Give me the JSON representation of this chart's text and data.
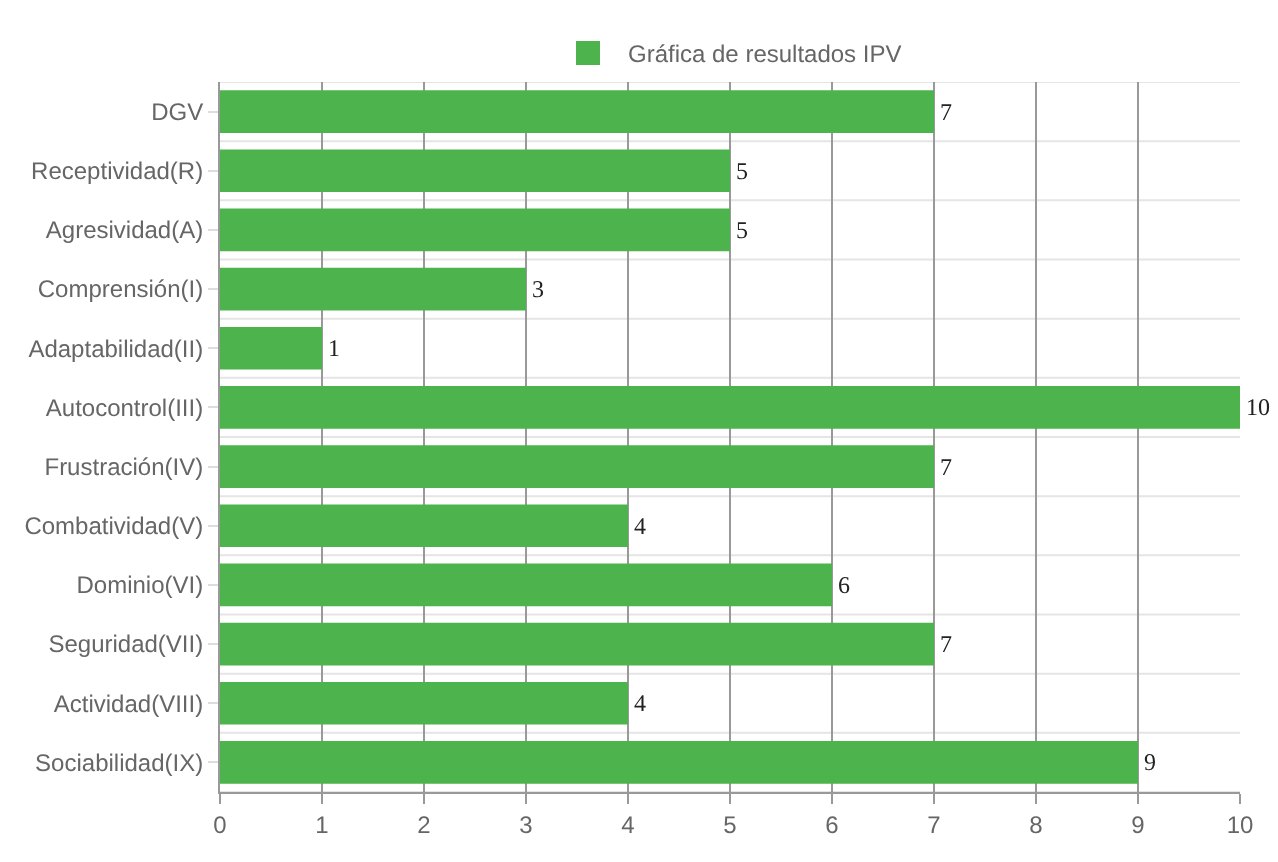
{
  "chart_data": {
    "type": "bar",
    "orientation": "horizontal",
    "categories": [
      "DGV",
      "Receptividad(R)",
      "Agresividad(A)",
      "Comprensión(I)",
      "Adaptabilidad(II)",
      "Autocontrol(III)",
      "Frustración(IV)",
      "Combatividad(V)",
      "Dominio(VI)",
      "Seguridad(VII)",
      "Actividad(VIII)",
      "Sociabilidad(IX)"
    ],
    "series": [
      {
        "name": "Gráfica de resultados IPV",
        "color": "#4db34d",
        "values": [
          7,
          5,
          5,
          3,
          1,
          10,
          7,
          4,
          6,
          7,
          4,
          9
        ]
      }
    ],
    "xlim": [
      0,
      10
    ],
    "xticks": [
      0,
      1,
      2,
      3,
      4,
      5,
      6,
      7,
      8,
      9,
      10
    ],
    "grid": true,
    "legend": "top",
    "data_labels": true
  }
}
